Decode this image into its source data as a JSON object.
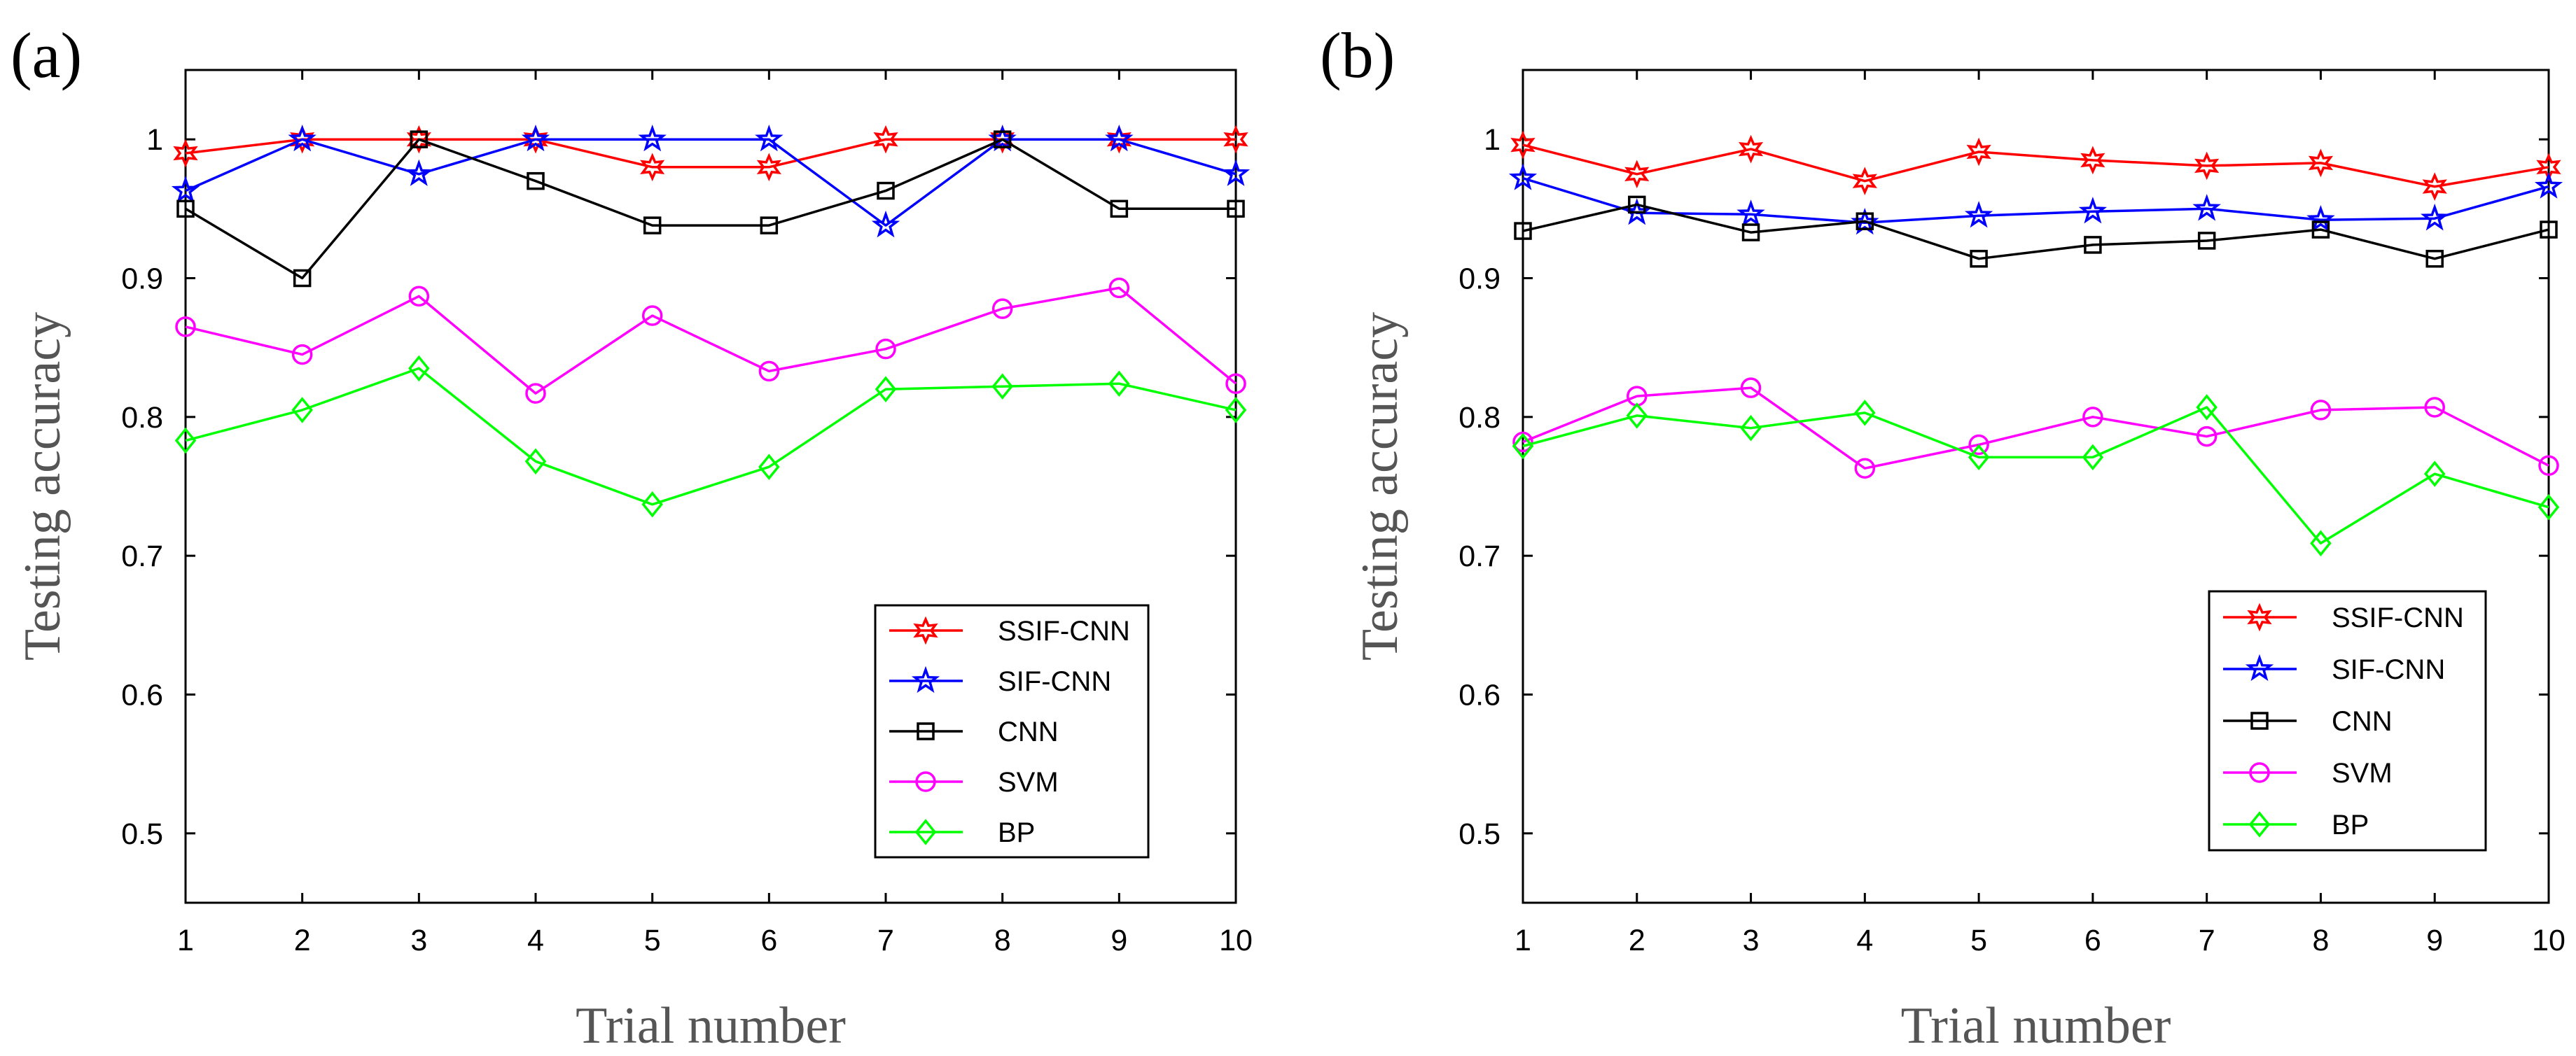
{
  "chart_data": [
    {
      "type": "line",
      "panel_label": "(a)",
      "xlabel": "Trial number",
      "ylabel": "Testing accuracy",
      "xlim": [
        1,
        10
      ],
      "ylim": [
        0.45,
        1.05
      ],
      "xticks": [
        "1",
        "2",
        "3",
        "4",
        "5",
        "6",
        "7",
        "8",
        "9",
        "10"
      ],
      "yticks": [
        "0.5",
        "0.6",
        "0.7",
        "0.8",
        "0.9",
        "1"
      ],
      "legend_position": "bottom-right",
      "x": [
        1,
        2,
        3,
        4,
        5,
        6,
        7,
        8,
        9,
        10
      ],
      "series": [
        {
          "name": "SSIF-CNN",
          "color": "#ff0000",
          "marker": "hexagram",
          "values": [
            0.99,
            1.0,
            1.0,
            1.0,
            0.98,
            0.98,
            1.0,
            1.0,
            1.0,
            1.0
          ]
        },
        {
          "name": "SIF-CNN",
          "color": "#0000ff",
          "marker": "star",
          "values": [
            0.963,
            1.0,
            0.975,
            1.0,
            1.0,
            1.0,
            0.938,
            1.0,
            1.0,
            0.975
          ]
        },
        {
          "name": "CNN",
          "color": "#000000",
          "marker": "square",
          "values": [
            0.95,
            0.9,
            1.0,
            0.97,
            0.938,
            0.938,
            0.963,
            1.0,
            0.95,
            0.95
          ]
        },
        {
          "name": "SVM",
          "color": "#ff00ff",
          "marker": "circle",
          "values": [
            0.865,
            0.845,
            0.887,
            0.817,
            0.873,
            0.833,
            0.849,
            0.878,
            0.893,
            0.824
          ]
        },
        {
          "name": "BP",
          "color": "#00ff00",
          "marker": "diamond",
          "values": [
            0.783,
            0.805,
            0.835,
            0.768,
            0.737,
            0.764,
            0.82,
            0.822,
            0.824,
            0.805
          ]
        }
      ]
    },
    {
      "type": "line",
      "panel_label": "(b)",
      "xlabel": "Trial number",
      "ylabel": "Testing accuracy",
      "xlim": [
        1,
        10
      ],
      "ylim": [
        0.45,
        1.05
      ],
      "xticks": [
        "1",
        "2",
        "3",
        "4",
        "5",
        "6",
        "7",
        "8",
        "9",
        "10"
      ],
      "yticks": [
        "0.5",
        "0.6",
        "0.7",
        "0.8",
        "0.9",
        "1"
      ],
      "legend_position": "bottom-right",
      "x": [
        1,
        2,
        3,
        4,
        5,
        6,
        7,
        8,
        9,
        10
      ],
      "series": [
        {
          "name": "SSIF-CNN",
          "color": "#ff0000",
          "marker": "hexagram",
          "values": [
            0.996,
            0.975,
            0.993,
            0.97,
            0.991,
            0.985,
            0.981,
            0.983,
            0.966,
            0.98
          ]
        },
        {
          "name": "SIF-CNN",
          "color": "#0000ff",
          "marker": "star",
          "values": [
            0.972,
            0.947,
            0.946,
            0.94,
            0.945,
            0.948,
            0.95,
            0.942,
            0.943,
            0.966
          ]
        },
        {
          "name": "CNN",
          "color": "#000000",
          "marker": "square",
          "values": [
            0.934,
            0.953,
            0.933,
            0.941,
            0.914,
            0.924,
            0.927,
            0.935,
            0.914,
            0.935
          ]
        },
        {
          "name": "SVM",
          "color": "#ff00ff",
          "marker": "circle",
          "values": [
            0.782,
            0.815,
            0.821,
            0.763,
            0.78,
            0.8,
            0.786,
            0.805,
            0.807,
            0.765
          ]
        },
        {
          "name": "BP",
          "color": "#00ff00",
          "marker": "diamond",
          "values": [
            0.779,
            0.801,
            0.792,
            0.803,
            0.771,
            0.771,
            0.807,
            0.709,
            0.759,
            0.735
          ]
        }
      ]
    }
  ]
}
